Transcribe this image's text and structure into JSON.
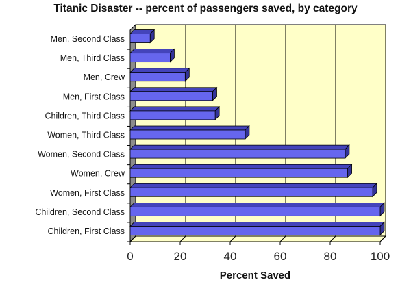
{
  "chart_data": {
    "type": "bar",
    "orientation": "horizontal",
    "style": "3d",
    "title": "Titanic Disaster --  percent of passengers saved, by category",
    "xlabel": "Percent Saved",
    "ylabel": "",
    "xlim": [
      0,
      100
    ],
    "xticks": [
      "0",
      "20",
      "40",
      "60",
      "80",
      "100"
    ],
    "grid": true,
    "legend": "none",
    "categories": [
      "Children, First Class",
      "Children, Second Class",
      "Women, First Class",
      "Women, Crew",
      "Women, Second Class",
      "Women, Third Class",
      "Children, Third Class",
      "Men, First Class",
      "Men, Crew",
      "Men, Third Class",
      "Men, Second Class"
    ],
    "values": [
      100,
      100,
      97,
      87,
      86,
      46,
      34,
      33,
      22,
      16,
      8
    ],
    "colors": {
      "bar": "#6666ee",
      "bar_top": "#4444bb",
      "bar_side": "#333399",
      "plot_background": "#ffffc8",
      "side_wall": "#8c8c8c"
    }
  }
}
